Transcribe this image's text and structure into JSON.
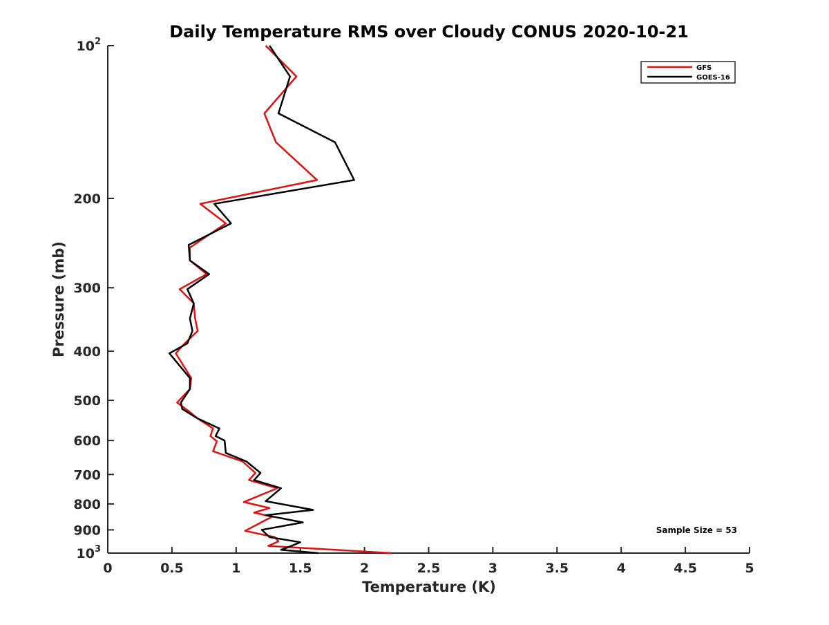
{
  "chart_data": {
    "type": "line",
    "title": "Daily Temperature RMS over Cloudy CONUS 2020-10-21",
    "xlabel": "Temperature (K)",
    "ylabel": "Pressure (mb)",
    "xlim": [
      0,
      5
    ],
    "ylim": [
      100,
      1000
    ],
    "y_scale": "log",
    "y_reversed": true,
    "grid": false,
    "legend_position": "top-right",
    "x_ticks": [
      "0",
      "0.5",
      "1",
      "1.5",
      "2",
      "2.5",
      "3",
      "3.5",
      "4",
      "4.5",
      "5"
    ],
    "y_ticks": [
      {
        "value": 100,
        "base": "10",
        "exp": "2"
      },
      {
        "value": 200,
        "label": "200"
      },
      {
        "value": 300,
        "label": "300"
      },
      {
        "value": 400,
        "label": "400"
      },
      {
        "value": 500,
        "label": "500"
      },
      {
        "value": 600,
        "label": "600"
      },
      {
        "value": 700,
        "label": "700"
      },
      {
        "value": 800,
        "label": "800"
      },
      {
        "value": 900,
        "label": "900"
      },
      {
        "value": 1000,
        "base": "10",
        "exp": "3"
      }
    ],
    "annotation": "Sample Size = 53",
    "series": [
      {
        "name": "GFS",
        "color": "#e01010",
        "points": [
          [
            1.23,
            100
          ],
          [
            1.47,
            115
          ],
          [
            1.22,
            136
          ],
          [
            1.31,
            155
          ],
          [
            1.63,
            184
          ],
          [
            0.72,
            205
          ],
          [
            0.92,
            224
          ],
          [
            0.64,
            250
          ],
          [
            0.64,
            265
          ],
          [
            0.77,
            282
          ],
          [
            0.56,
            302
          ],
          [
            0.67,
            322
          ],
          [
            0.68,
            344
          ],
          [
            0.7,
            365
          ],
          [
            0.6,
            386
          ],
          [
            0.53,
            404
          ],
          [
            0.65,
            452
          ],
          [
            0.64,
            475
          ],
          [
            0.54,
            505
          ],
          [
            0.63,
            525
          ],
          [
            0.7,
            543
          ],
          [
            0.82,
            568
          ],
          [
            0.8,
            588
          ],
          [
            0.85,
            602
          ],
          [
            0.82,
            630
          ],
          [
            1.05,
            660
          ],
          [
            1.15,
            695
          ],
          [
            1.1,
            718
          ],
          [
            1.32,
            745
          ],
          [
            1.06,
            793
          ],
          [
            1.26,
            815
          ],
          [
            1.14,
            832
          ],
          [
            1.28,
            848
          ],
          [
            1.07,
            904
          ],
          [
            1.3,
            930
          ],
          [
            1.33,
            948
          ],
          [
            1.25,
            968
          ],
          [
            1.55,
            978
          ],
          [
            2.21,
            1000
          ]
        ]
      },
      {
        "name": "GOES-16",
        "color": "#000000",
        "points": [
          [
            1.26,
            100
          ],
          [
            1.42,
            115
          ],
          [
            1.33,
            136
          ],
          [
            1.77,
            155
          ],
          [
            1.92,
            184
          ],
          [
            0.83,
            205
          ],
          [
            0.96,
            224
          ],
          [
            0.63,
            247
          ],
          [
            0.64,
            265
          ],
          [
            0.79,
            282
          ],
          [
            0.62,
            302
          ],
          [
            0.67,
            322
          ],
          [
            0.64,
            345
          ],
          [
            0.66,
            365
          ],
          [
            0.62,
            386
          ],
          [
            0.48,
            404
          ],
          [
            0.64,
            452
          ],
          [
            0.64,
            475
          ],
          [
            0.57,
            505
          ],
          [
            0.58,
            520
          ],
          [
            0.7,
            543
          ],
          [
            0.87,
            568
          ],
          [
            0.84,
            588
          ],
          [
            0.91,
            600
          ],
          [
            0.92,
            635
          ],
          [
            1.08,
            660
          ],
          [
            1.19,
            695
          ],
          [
            1.14,
            718
          ],
          [
            1.35,
            745
          ],
          [
            1.23,
            790
          ],
          [
            1.6,
            822
          ],
          [
            1.23,
            842
          ],
          [
            1.52,
            870
          ],
          [
            1.2,
            900
          ],
          [
            1.26,
            930
          ],
          [
            1.5,
            952
          ],
          [
            1.4,
            975
          ],
          [
            1.35,
            985
          ],
          [
            1.64,
            1000
          ]
        ]
      }
    ]
  }
}
